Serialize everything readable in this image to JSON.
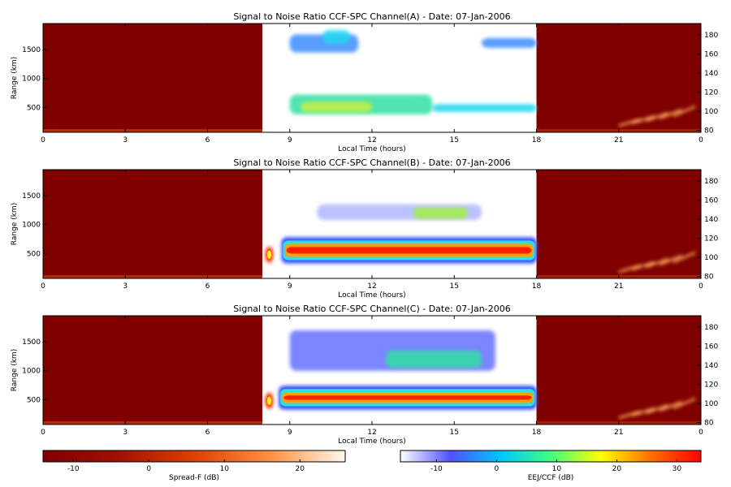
{
  "chart_data": {
    "type": "heatmap",
    "panels": [
      {
        "title": "Signal to Noise Ratio CCF-SPC Channel(A) - Date: 07-Jan-2006",
        "xlabel": "Local Time (hours)",
        "ylabel": "Range (km)",
        "x_ticks": [
          "0",
          "3",
          "6",
          "9",
          "12",
          "15",
          "18",
          "21",
          "0"
        ],
        "y_ticks_left": [
          "500",
          "1000",
          "1500"
        ],
        "y_ticks_right": [
          "80",
          "100",
          "120",
          "140",
          "160",
          "180"
        ],
        "xlim": [
          0,
          24
        ],
        "ylim_left": [
          70,
          1950
        ],
        "ylim_right": [
          78,
          192
        ],
        "daytime_window": [
          8,
          18
        ],
        "night_band": {
          "range_km": [
            70,
            125
          ],
          "intensity": "weak"
        },
        "blobs": [
          {
            "t": [
              9.0,
              11.5
            ],
            "r": [
              1450,
              1760
            ],
            "level": "cyan-blue"
          },
          {
            "t": [
              10.2,
              11.2
            ],
            "r": [
              1600,
              1840
            ],
            "level": "cyan"
          },
          {
            "t": [
              9.0,
              14.2
            ],
            "r": [
              380,
              720
            ],
            "level": "cyan-green"
          },
          {
            "t": [
              9.4,
              12.0
            ],
            "r": [
              420,
              600
            ],
            "level": "yellow-green"
          },
          {
            "t": [
              14.2,
              18.0
            ],
            "r": [
              420,
              560
            ],
            "level": "cyan"
          },
          {
            "t": [
              16.0,
              18.0
            ],
            "r": [
              1530,
              1700
            ],
            "level": "cyan-blue"
          }
        ],
        "dawn_burst": false,
        "spread_f_after_21h": true
      },
      {
        "title": "Signal to Noise Ratio CCF-SPC Channel(B) - Date: 07-Jan-2006",
        "xlabel": "Local Time (hours)",
        "ylabel": "Range (km)",
        "x_ticks": [
          "0",
          "3",
          "6",
          "9",
          "12",
          "15",
          "18",
          "21",
          "0"
        ],
        "y_ticks_left": [
          "500",
          "1000",
          "1500"
        ],
        "y_ticks_right": [
          "80",
          "100",
          "120",
          "140",
          "160",
          "180"
        ],
        "xlim": [
          0,
          24
        ],
        "ylim_left": [
          70,
          1950
        ],
        "ylim_right": [
          78,
          192
        ],
        "daytime_window": [
          8,
          18
        ],
        "night_band": {
          "range_km": [
            70,
            125
          ],
          "intensity": "weak"
        },
        "blobs": [
          {
            "t": [
              8.7,
              18.0
            ],
            "r": [
              330,
              780
            ],
            "level": "red-core"
          },
          {
            "t": [
              10.0,
              16.0
            ],
            "r": [
              1080,
              1350
            ],
            "level": "faint-blue"
          },
          {
            "t": [
              13.5,
              15.5
            ],
            "r": [
              1100,
              1300
            ],
            "level": "green-yellow"
          }
        ],
        "dawn_burst": true,
        "spread_f_after_21h": true
      },
      {
        "title": "Signal to Noise Ratio CCF-SPC Channel(C) - Date: 07-Jan-2006",
        "xlabel": "Local Time (hours)",
        "ylabel": "Range (km)",
        "x_ticks": [
          "0",
          "3",
          "6",
          "9",
          "12",
          "15",
          "18",
          "21",
          "0"
        ],
        "y_ticks_left": [
          "500",
          "1000",
          "1500"
        ],
        "y_ticks_right": [
          "80",
          "100",
          "120",
          "140",
          "160",
          "180"
        ],
        "xlim": [
          0,
          24
        ],
        "ylim_left": [
          70,
          1950
        ],
        "ylim_right": [
          78,
          192
        ],
        "daytime_window": [
          8,
          18
        ],
        "night_band": {
          "range_km": [
            70,
            125
          ],
          "intensity": "weak"
        },
        "blobs": [
          {
            "t": [
              8.6,
              18.0
            ],
            "r": [
              330,
              740
            ],
            "level": "red-core"
          },
          {
            "t": [
              9.0,
              16.5
            ],
            "r": [
              1000,
              1700
            ],
            "level": "blue-arc"
          },
          {
            "t": [
              12.5,
              16.0
            ],
            "r": [
              1050,
              1350
            ],
            "level": "cyan-green"
          }
        ],
        "dawn_burst": true,
        "spread_f_after_21h": true
      }
    ],
    "colorbars": [
      {
        "label": "Spread-F (dB)",
        "ticks": [
          "-10",
          "0",
          "10",
          "20"
        ],
        "range": [
          -14,
          26
        ],
        "colors": [
          "#800000",
          "#a01000",
          "#e04000",
          "#ff9040",
          "#fff8ee"
        ]
      },
      {
        "label": "EEJ/CCF (dB)",
        "ticks": [
          "-10",
          "0",
          "10",
          "20",
          "30"
        ],
        "range": [
          -16,
          34
        ],
        "colors": [
          "#ffffff",
          "#5050ff",
          "#00c8ff",
          "#40ff80",
          "#ffff00",
          "#ff7000",
          "#ff0000"
        ]
      }
    ]
  }
}
